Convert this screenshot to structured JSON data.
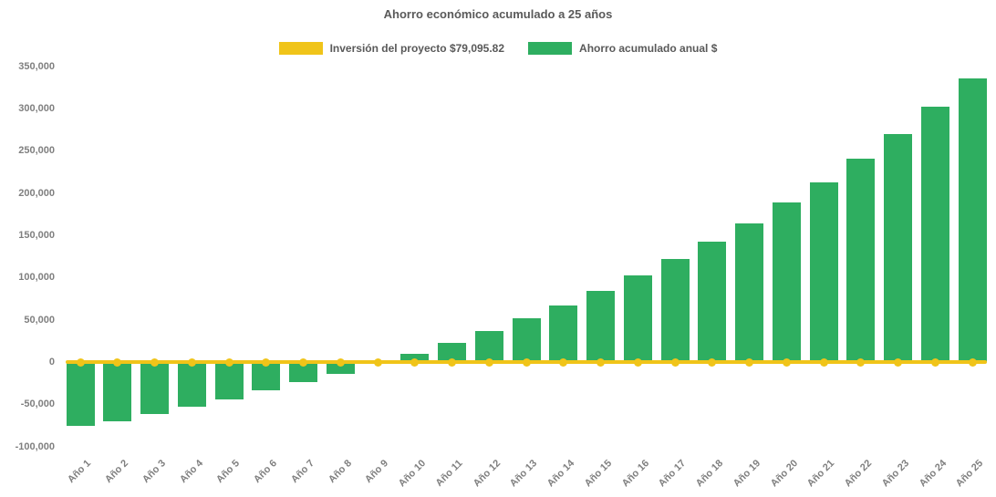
{
  "chart_data": {
    "type": "bar",
    "title": "Ahorro económico acumulado a 25 años",
    "categories": [
      "Año 1",
      "Año 2",
      "Año 3",
      "Año 4",
      "Año 5",
      "Año 6",
      "Año 7",
      "Año 8",
      "Año 9",
      "Año 10",
      "Año 11",
      "Año 12",
      "Año 13",
      "Año 14",
      "Año 15",
      "Año 16",
      "Año 17",
      "Año 18",
      "Año 19",
      "Año 20",
      "Año 21",
      "Año 22",
      "Año 23",
      "Año 24",
      "Año 25"
    ],
    "series": [
      {
        "name": "Inversión del proyecto $79,095.82",
        "type": "line",
        "color": "#F0C419",
        "constant_value": 0
      },
      {
        "name": "Ahorro acumulado anual $",
        "type": "bar",
        "color": "#2EAE60",
        "values": [
          -75000,
          -70000,
          -61000,
          -52500,
          -44000,
          -33500,
          -24000,
          -14000,
          -2000,
          9500,
          22500,
          37000,
          51500,
          67000,
          84000,
          102000,
          121500,
          142000,
          164500,
          189000,
          213000,
          241000,
          270000,
          302000,
          336000
        ]
      }
    ],
    "ylim": [
      -100000,
      350000
    ],
    "ytick_interval": 50000,
    "yticks": [
      350000,
      300000,
      250000,
      200000,
      150000,
      100000,
      50000,
      0,
      -50000,
      -100000
    ],
    "grid": false,
    "legend_position": "top",
    "x_label_rotation_deg": -45,
    "colors": {
      "title_text": "#595959",
      "tick_text": "#7f7f7f",
      "legend_text": "#595959",
      "background": "#ffffff"
    }
  }
}
